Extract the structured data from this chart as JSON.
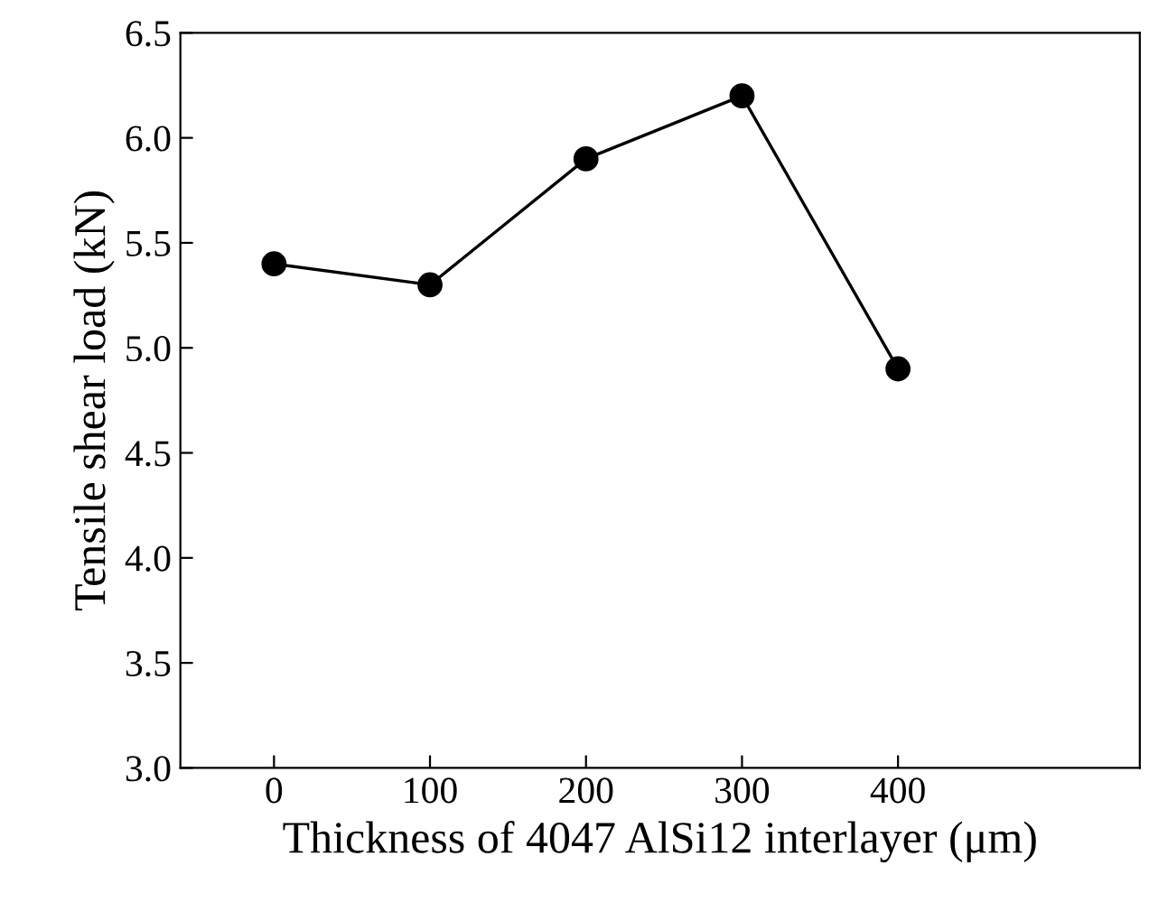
{
  "chart_data": {
    "type": "line",
    "xlabel": "Thickness of 4047 AlSi12 interlayer (μm)",
    "ylabel": "Tensile shear load (kN)",
    "x": [
      0,
      100,
      200,
      300,
      400
    ],
    "series": [
      {
        "color": "#000000",
        "values": [
          5.4,
          5.3,
          5.9,
          6.2,
          4.9
        ]
      }
    ],
    "xlim": [
      -60,
      555
    ],
    "xticks": [
      0,
      100,
      200,
      300,
      400
    ],
    "ylim": [
      3.0,
      6.5
    ],
    "yticks": [
      {
        "value": 3.0,
        "label": "3.0"
      },
      {
        "value": 3.5,
        "label": "3.5"
      },
      {
        "value": 4.0,
        "label": "4.0"
      },
      {
        "value": 4.5,
        "label": "4.5"
      },
      {
        "value": 5.0,
        "label": "5.0"
      },
      {
        "value": 5.5,
        "label": "5.5"
      },
      {
        "value": 6.0,
        "label": "6.0"
      },
      {
        "value": 6.5,
        "label": "6.5"
      }
    ],
    "marker": "circle",
    "line_style": "solid",
    "grid": false,
    "legend": false
  }
}
